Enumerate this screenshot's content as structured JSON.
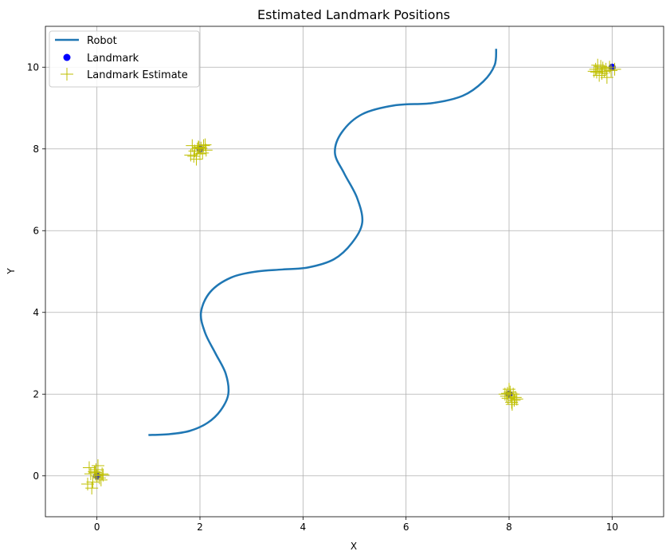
{
  "chart_data": {
    "type": "line",
    "title": "Estimated Landmark Positions",
    "xlabel": "X",
    "ylabel": "Y",
    "xlim": [
      -1,
      11
    ],
    "ylim": [
      -1,
      11
    ],
    "xticks": [
      0,
      2,
      4,
      6,
      8,
      10
    ],
    "yticks": [
      0,
      2,
      4,
      6,
      8,
      10
    ],
    "grid": true,
    "legend_position": "top-left",
    "colors": {
      "robot": "#1f77b4",
      "landmark": "#0000ff",
      "estimate": "#bfbf00",
      "grid": "#b0b0b0"
    },
    "series": [
      {
        "name": "Robot",
        "kind": "line",
        "x": [
          1.0,
          1.4,
          1.8,
          2.15,
          2.4,
          2.55,
          2.5,
          2.3,
          2.1,
          2.02,
          2.2,
          2.6,
          3.1,
          3.6,
          4.1,
          4.6,
          4.95,
          5.15,
          5.05,
          4.8,
          4.62,
          4.75,
          5.15,
          5.8,
          6.5,
          7.1,
          7.5,
          7.72,
          7.75
        ],
        "y": [
          1.0,
          1.02,
          1.1,
          1.3,
          1.6,
          2.0,
          2.5,
          3.0,
          3.5,
          4.0,
          4.5,
          4.85,
          5.0,
          5.05,
          5.1,
          5.3,
          5.7,
          6.2,
          6.8,
          7.4,
          7.9,
          8.4,
          8.85,
          9.07,
          9.12,
          9.3,
          9.65,
          10.05,
          10.45
        ]
      },
      {
        "name": "Landmark",
        "kind": "points",
        "x": [
          0,
          2,
          8,
          10
        ],
        "y": [
          0,
          8,
          2,
          10
        ]
      },
      {
        "name": "Landmark Estimate",
        "kind": "points",
        "x": [
          -0.12,
          -0.05,
          0.05,
          -0.15,
          0.0,
          -0.08,
          0.1,
          -0.02,
          -0.1,
          0.02,
          0.08,
          -0.18,
          -0.03,
          0.12,
          1.82,
          1.9,
          1.97,
          2.05,
          2.1,
          1.95,
          1.88,
          2.02,
          2.12,
          1.93,
          2.0,
          2.07,
          1.85,
          1.98,
          7.95,
          8.02,
          8.08,
          7.98,
          8.12,
          8.05,
          7.92,
          8.0,
          8.1,
          8.03,
          7.97,
          8.15,
          8.06,
          9.65,
          9.72,
          9.8,
          9.88,
          9.95,
          9.75,
          9.68,
          9.85,
          9.9,
          9.78,
          9.82,
          9.7,
          10.05,
          9.98
        ],
        "y": [
          0.05,
          0.1,
          -0.05,
          0.2,
          0.0,
          -0.15,
          0.05,
          0.15,
          -0.3,
          0.25,
          -0.1,
          -0.2,
          0.08,
          0.02,
          7.85,
          7.95,
          8.05,
          7.9,
          8.1,
          8.0,
          7.82,
          8.02,
          7.97,
          7.75,
          7.88,
          8.08,
          8.08,
          8.03,
          1.95,
          2.05,
          2.0,
          1.9,
          1.92,
          1.8,
          2.0,
          2.12,
          1.85,
          1.95,
          2.02,
          1.88,
          1.75,
          9.9,
          10.05,
          9.85,
          9.95,
          10.0,
          9.8,
          9.95,
          9.9,
          9.75,
          10.02,
          9.98,
          9.88,
          9.95,
          9.92
        ]
      }
    ]
  }
}
